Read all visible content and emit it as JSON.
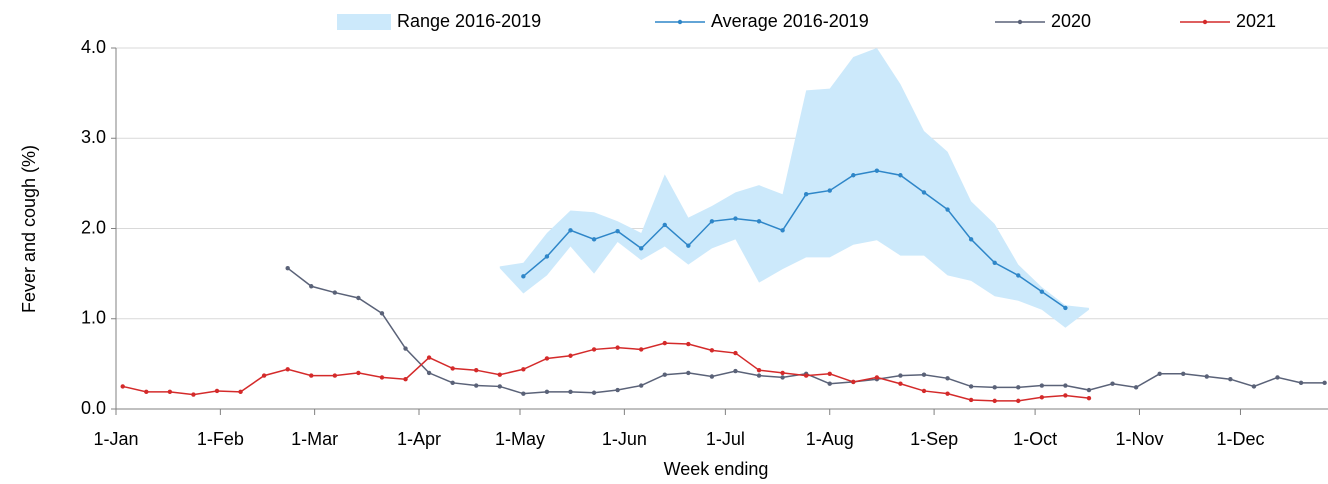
{
  "chart_data": {
    "type": "line",
    "x_label": "Week ending",
    "y_label": "Fever and cough (%)",
    "x": [
      2,
      9,
      16,
      23,
      30,
      37,
      44,
      51,
      58,
      65,
      72,
      79,
      86,
      93,
      100,
      107,
      114,
      121,
      128,
      135,
      142,
      149,
      156,
      163,
      170,
      177,
      184,
      191,
      198,
      205,
      212,
      219,
      226,
      233,
      240,
      247,
      254,
      261,
      268,
      275,
      282,
      289,
      296,
      303,
      310,
      317,
      324,
      331,
      338,
      345,
      352,
      359
    ],
    "xlim": [
      0,
      360
    ],
    "xticks": [
      {
        "value": 0,
        "label": "1-Jan"
      },
      {
        "value": 31,
        "label": "1-Feb"
      },
      {
        "value": 59,
        "label": "1-Mar"
      },
      {
        "value": 90,
        "label": "1-Apr"
      },
      {
        "value": 120,
        "label": "1-May"
      },
      {
        "value": 151,
        "label": "1-Jun"
      },
      {
        "value": 181,
        "label": "1-Jul"
      },
      {
        "value": 212,
        "label": "1-Aug"
      },
      {
        "value": 243,
        "label": "1-Sep"
      },
      {
        "value": 273,
        "label": "1-Oct"
      },
      {
        "value": 304,
        "label": "1-Nov"
      },
      {
        "value": 334,
        "label": "1-Dec"
      }
    ],
    "ylim": [
      0,
      4
    ],
    "yticks": [
      {
        "value": 0,
        "label": "0.0"
      },
      {
        "value": 1,
        "label": "1.0"
      },
      {
        "value": 2,
        "label": "2.0"
      },
      {
        "value": 3,
        "label": "3.0"
      },
      {
        "value": 4,
        "label": "4.0"
      }
    ],
    "grid": true,
    "legend": "top",
    "series": [
      {
        "name": "Range 2016-2019",
        "color": "#cce9fb",
        "lower": [
          null,
          null,
          null,
          null,
          null,
          null,
          null,
          null,
          null,
          null,
          null,
          null,
          null,
          null,
          null,
          null,
          1.56,
          1.28,
          1.48,
          1.8,
          1.5,
          1.85,
          1.65,
          1.8,
          1.6,
          1.78,
          1.88,
          1.4,
          1.55,
          1.68,
          1.68,
          1.82,
          1.87,
          1.7,
          1.7,
          1.48,
          1.42,
          1.25,
          1.2,
          1.1,
          0.9,
          1.1,
          null,
          null,
          null,
          null,
          null,
          null,
          null,
          null,
          null,
          null
        ],
        "upper": [
          null,
          null,
          null,
          null,
          null,
          null,
          null,
          null,
          null,
          null,
          null,
          null,
          null,
          null,
          null,
          null,
          1.58,
          1.62,
          1.95,
          2.2,
          2.18,
          2.08,
          1.95,
          2.6,
          2.12,
          2.25,
          2.4,
          2.48,
          2.38,
          3.53,
          3.55,
          3.9,
          4.0,
          3.6,
          3.08,
          2.85,
          2.3,
          2.05,
          1.6,
          1.35,
          1.15,
          1.12,
          null,
          null,
          null,
          null,
          null,
          null,
          null,
          null,
          null,
          null
        ]
      },
      {
        "name": "Average 2016-2019",
        "color": "#2e86c8",
        "values": [
          null,
          null,
          null,
          null,
          null,
          null,
          null,
          null,
          null,
          null,
          null,
          null,
          null,
          null,
          null,
          null,
          null,
          1.47,
          1.69,
          1.98,
          1.88,
          1.97,
          1.78,
          2.04,
          1.81,
          2.08,
          2.11,
          2.08,
          1.98,
          2.38,
          2.42,
          2.59,
          2.64,
          2.59,
          2.4,
          2.21,
          1.88,
          1.62,
          1.48,
          1.3,
          1.12,
          null,
          null,
          null,
          null,
          null,
          null,
          null,
          null,
          null,
          null,
          null
        ]
      },
      {
        "name": "2020",
        "color": "#5a6278",
        "values": [
          null,
          null,
          null,
          null,
          null,
          null,
          null,
          1.56,
          1.36,
          1.29,
          1.23,
          1.06,
          0.67,
          0.4,
          0.29,
          0.26,
          0.25,
          0.17,
          0.19,
          0.19,
          0.18,
          0.21,
          0.26,
          0.38,
          0.4,
          0.36,
          0.42,
          0.37,
          0.35,
          0.39,
          0.28,
          0.3,
          0.33,
          0.37,
          0.38,
          0.34,
          0.25,
          0.24,
          0.24,
          0.26,
          0.26,
          0.21,
          0.28,
          0.24,
          0.39,
          0.39,
          0.36,
          0.33,
          0.25,
          0.35,
          0.29,
          0.29
        ]
      },
      {
        "name": "2021",
        "color": "#d42a2a",
        "values": [
          0.25,
          0.19,
          0.19,
          0.16,
          0.2,
          0.19,
          0.37,
          0.44,
          0.37,
          0.37,
          0.4,
          0.35,
          0.33,
          0.57,
          0.45,
          0.43,
          0.38,
          0.44,
          0.56,
          0.59,
          0.66,
          0.68,
          0.66,
          0.73,
          0.72,
          0.65,
          0.62,
          0.43,
          0.4,
          0.37,
          0.39,
          0.3,
          0.35,
          0.28,
          0.2,
          0.17,
          0.1,
          0.09,
          0.09,
          0.13,
          0.15,
          0.12,
          null,
          null,
          null,
          null,
          null,
          null,
          null,
          null,
          null,
          null
        ]
      }
    ]
  }
}
